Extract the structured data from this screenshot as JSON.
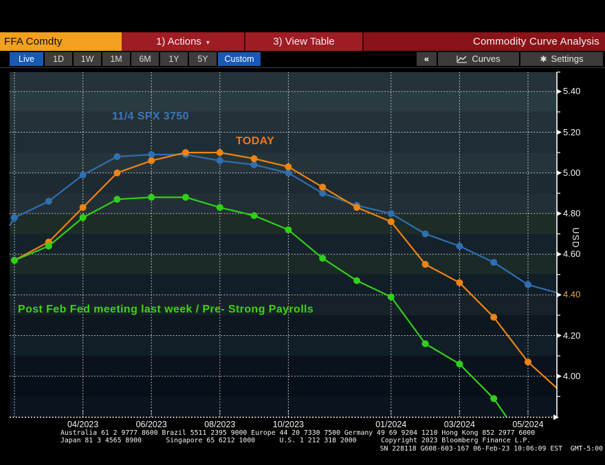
{
  "header": {
    "ticker": "FFA Comdty",
    "actions_label": "1) Actions",
    "actions_caret": "▾",
    "view_table_label": "3) View Table",
    "title": "Commodity Curve Analysis"
  },
  "toolbar": {
    "range_buttons": [
      {
        "label": "Live",
        "active": true
      },
      {
        "label": "1D",
        "active": false
      },
      {
        "label": "1W",
        "active": false
      },
      {
        "label": "1M",
        "active": false
      },
      {
        "label": "6M",
        "active": false
      },
      {
        "label": "1Y",
        "active": false
      },
      {
        "label": "5Y",
        "active": false
      },
      {
        "label": "Custom",
        "active": true
      }
    ],
    "collapse_label": "«",
    "curves_label": "Curves",
    "settings_label": "Settings",
    "settings_icon": "✱"
  },
  "chart_data": {
    "type": "line",
    "title": "Commodity Curve Analysis",
    "ylabel": "USD",
    "ylim": [
      3.8,
      5.5
    ],
    "y_major_ticks": [
      4.0,
      4.2,
      4.4,
      4.6,
      4.8,
      5.0,
      5.2,
      5.4
    ],
    "y_minor_step": 0.1,
    "y_tick_highlight": {
      "value": 4.4,
      "color": "#e2a84f"
    },
    "grid": true,
    "categories": [
      "02/2023",
      "03/2023",
      "04/2023",
      "05/2023",
      "06/2023",
      "07/2023",
      "08/2023",
      "09/2023",
      "10/2023",
      "11/2023",
      "12/2023",
      "01/2024",
      "02/2024",
      "03/2024",
      "04/2024",
      "05/2024"
    ],
    "x_labeled_ticks": [
      {
        "index": 2,
        "label": "04/2023"
      },
      {
        "index": 4,
        "label": "06/2023"
      },
      {
        "index": 6,
        "label": "08/2023"
      },
      {
        "index": 8,
        "label": "10/2023"
      },
      {
        "index": 11,
        "label": "01/2024"
      },
      {
        "index": 13,
        "label": "03/2024"
      },
      {
        "index": 15,
        "label": "05/2024"
      }
    ],
    "x_gridline_indices": [
      0,
      2,
      4,
      6,
      8,
      11,
      13,
      15
    ],
    "series": [
      {
        "name": "11/4 SPX 3750",
        "color": "#2f6fb2",
        "values": [
          4.78,
          4.86,
          4.99,
          5.08,
          5.09,
          5.09,
          5.06,
          5.04,
          5.0,
          4.9,
          4.84,
          4.8,
          4.7,
          4.64,
          4.56,
          4.45
        ],
        "edge_pre": {
          "index": -0.14,
          "value": 4.74
        },
        "edge_post": {
          "index": 15.85,
          "value": 4.41
        }
      },
      {
        "name": "TODAY",
        "color": "#ef8412",
        "values": [
          4.57,
          4.66,
          4.83,
          5.0,
          5.06,
          5.1,
          5.1,
          5.07,
          5.03,
          4.93,
          4.83,
          4.76,
          4.55,
          4.46,
          4.29,
          4.07
        ],
        "edge_post": {
          "index": 15.85,
          "value": 3.94
        }
      },
      {
        "name": "Post Feb Fed meeting last week / Pre- Strong Payrolls",
        "color": "#2fd117",
        "values": [
          4.57,
          4.64,
          4.78,
          4.87,
          4.88,
          4.88,
          4.83,
          4.79,
          4.72,
          4.58,
          4.47,
          4.39,
          4.16,
          4.06,
          3.89,
          null
        ],
        "edge_post": {
          "index": 14.37,
          "value": 3.8
        }
      }
    ]
  },
  "footer": {
    "line1": "Australia 61 2 9777 8600 Brazil 5511 2395 9000 Europe 44 20 7330 7500 Germany 49 69 9204 1210 Hong Kong 852 2977 6000",
    "line2": "Japan 81 3 4565 8900      Singapore 65 6212 1000      U.S. 1 212 318 2000      Copyright 2023 Bloomberg Finance L.P.",
    "line3": "SN 228118 G608-603-167 06-Feb-23 10:06:09 EST  GMT-5:00"
  }
}
